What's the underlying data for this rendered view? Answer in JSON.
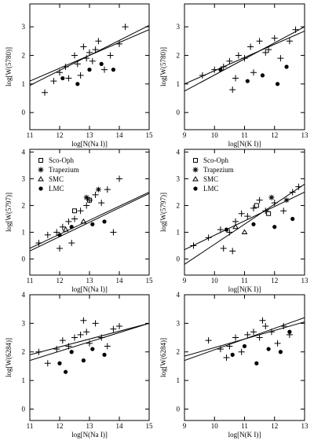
{
  "chart_data": [
    {
      "type": "scatter",
      "xlabel": "log[N(Na I)]",
      "ylabel": "log[W(5780)]",
      "xlim": [
        11,
        15
      ],
      "ylim": [
        -0.6,
        3.8
      ],
      "xticks": [
        11,
        12,
        13,
        14,
        15
      ],
      "yticks": [
        0,
        1,
        2,
        3
      ],
      "series": [
        {
          "marker": "plus",
          "color": "#000000",
          "x": [
            11.5,
            11.8,
            12.0,
            12.2,
            12.3,
            12.5,
            12.6,
            12.8,
            12.9,
            13.0,
            13.1,
            13.3,
            13.5,
            13.7,
            14.0,
            14.2,
            12.7,
            13.2
          ],
          "values": [
            0.7,
            1.1,
            1.4,
            1.6,
            1.2,
            2.0,
            1.7,
            2.3,
            1.9,
            2.1,
            1.8,
            2.5,
            1.5,
            2.0,
            2.4,
            3.0,
            1.3,
            2.2
          ]
        },
        {
          "marker": "dot",
          "color": "#000000",
          "x": [
            12.1,
            12.6,
            13.0,
            13.4,
            13.8
          ],
          "values": [
            1.2,
            1.0,
            1.5,
            1.7,
            1.5
          ]
        }
      ],
      "fits": [
        {
          "x": [
            11,
            15
          ],
          "values": [
            0.95,
            3.05
          ]
        },
        {
          "x": [
            11,
            15
          ],
          "values": [
            1.1,
            2.9
          ]
        }
      ]
    },
    {
      "type": "scatter",
      "xlabel": "log[N(K I)]",
      "ylabel": "log[W(5780)]",
      "xlim": [
        9,
        13
      ],
      "ylim": [
        -0.6,
        3.8
      ],
      "xticks": [
        9,
        10,
        11,
        12,
        13
      ],
      "yticks": [
        0,
        1,
        2,
        3
      ],
      "series": [
        {
          "marker": "plus",
          "color": "#000000",
          "x": [
            9.6,
            10.0,
            10.3,
            10.5,
            10.7,
            10.8,
            11.0,
            11.2,
            11.3,
            11.5,
            11.7,
            12.0,
            12.2,
            12.5,
            12.7,
            10.6,
            11.8
          ],
          "values": [
            1.3,
            1.5,
            1.6,
            1.8,
            1.2,
            2.0,
            1.9,
            2.3,
            1.4,
            2.5,
            2.1,
            2.6,
            1.9,
            2.5,
            2.9,
            0.8,
            2.2
          ]
        },
        {
          "marker": "dot",
          "color": "#000000",
          "x": [
            10.2,
            11.1,
            11.6,
            12.1,
            12.4
          ],
          "values": [
            1.5,
            1.1,
            1.3,
            1.0,
            1.6
          ]
        }
      ],
      "fits": [
        {
          "x": [
            9,
            13
          ],
          "values": [
            0.75,
            3.0
          ]
        },
        {
          "x": [
            9,
            13
          ],
          "values": [
            1.0,
            2.85
          ]
        }
      ]
    },
    {
      "type": "scatter",
      "xlabel": "log[N(Na I)]",
      "ylabel": "log[W(5797)]",
      "xlim": [
        11,
        15
      ],
      "ylim": [
        -0.6,
        4.1
      ],
      "xticks": [
        11,
        12,
        13,
        14,
        15
      ],
      "yticks": [
        0,
        1,
        2,
        3,
        4
      ],
      "series": [
        {
          "name": "Sco-Oph",
          "marker": "square",
          "color": "#000000",
          "x": [
            12.5,
            13.0
          ],
          "values": [
            1.8,
            2.2
          ]
        },
        {
          "name": "Trapezium",
          "marker": "star",
          "color": "#000000",
          "x": [
            13.3,
            12.9
          ],
          "values": [
            2.6,
            2.3
          ]
        },
        {
          "name": "SMC",
          "marker": "triangle",
          "color": "#000000",
          "x": [
            12.2,
            12.8
          ],
          "values": [
            1.1,
            1.4
          ]
        },
        {
          "name": "LMC",
          "marker": "dot",
          "color": "#000000",
          "x": [
            12.0,
            12.4,
            13.1,
            13.5
          ],
          "values": [
            0.9,
            1.2,
            1.3,
            1.4
          ]
        },
        {
          "marker": "plus",
          "color": "#000000",
          "x": [
            11.3,
            11.6,
            11.9,
            12.1,
            12.3,
            12.5,
            12.7,
            12.9,
            13.0,
            13.2,
            13.4,
            13.6,
            13.8,
            14.0,
            12.4,
            12.0
          ],
          "values": [
            0.6,
            0.9,
            1.0,
            1.2,
            1.4,
            1.5,
            1.8,
            2.0,
            2.2,
            2.4,
            2.1,
            2.6,
            1.0,
            3.0,
            0.6,
            0.4
          ]
        }
      ],
      "fits": [
        {
          "x": [
            11,
            15
          ],
          "values": [
            0.4,
            2.5
          ]
        },
        {
          "x": [
            11,
            15
          ],
          "values": [
            0.3,
            2.45
          ]
        }
      ]
    },
    {
      "type": "scatter",
      "xlabel": "log[N(K I)]",
      "ylabel": "log[W(5797)]",
      "xlim": [
        9,
        13
      ],
      "ylim": [
        -0.6,
        4.1
      ],
      "xticks": [
        9,
        10,
        11,
        12,
        13
      ],
      "yticks": [
        0,
        1,
        2,
        3,
        4
      ],
      "series": [
        {
          "name": "Sco-Oph",
          "marker": "square",
          "color": "#000000",
          "x": [
            11.4,
            11.8
          ],
          "values": [
            2.0,
            1.7
          ]
        },
        {
          "name": "Trapezium",
          "marker": "star",
          "color": "#000000",
          "x": [
            11.9,
            12.4
          ],
          "values": [
            2.3,
            2.2
          ]
        },
        {
          "name": "SMC",
          "marker": "triangle",
          "color": "#000000",
          "x": [
            10.7,
            11.0
          ],
          "values": [
            1.2,
            1.0
          ]
        },
        {
          "name": "LMC",
          "marker": "dot",
          "color": "#000000",
          "x": [
            10.4,
            11.3,
            12.0,
            12.6
          ],
          "values": [
            1.1,
            1.3,
            1.2,
            1.5
          ]
        },
        {
          "marker": "plus",
          "color": "#000000",
          "x": [
            9.3,
            9.8,
            10.2,
            10.5,
            10.7,
            10.9,
            11.1,
            11.3,
            11.5,
            11.7,
            12.0,
            12.3,
            12.6,
            12.8,
            10.3,
            10.6
          ],
          "values": [
            0.5,
            0.8,
            1.1,
            1.0,
            1.4,
            1.7,
            1.6,
            1.9,
            2.2,
            1.8,
            2.1,
            1.8,
            2.5,
            2.7,
            0.4,
            0.3
          ]
        }
      ],
      "fits": [
        {
          "x": [
            9,
            13
          ],
          "values": [
            -0.2,
            2.8
          ]
        },
        {
          "x": [
            9,
            13
          ],
          "values": [
            0.35,
            2.5
          ]
        }
      ]
    },
    {
      "type": "scatter",
      "xlabel": "log[N(Na I)]",
      "ylabel": "log[W(6284)]",
      "xlim": [
        11,
        15
      ],
      "ylim": [
        -0.4,
        4
      ],
      "xticks": [
        11,
        12,
        13,
        14,
        15
      ],
      "yticks": [
        0,
        1,
        2,
        3,
        4
      ],
      "series": [
        {
          "marker": "plus",
          "color": "#000000",
          "x": [
            11.3,
            11.6,
            11.9,
            12.1,
            12.3,
            12.5,
            12.7,
            12.9,
            13.0,
            13.2,
            13.4,
            13.6,
            13.8,
            14.0,
            12.8
          ],
          "values": [
            2.0,
            1.6,
            2.1,
            2.4,
            2.2,
            2.5,
            2.6,
            2.7,
            2.3,
            3.0,
            2.5,
            2.2,
            2.8,
            2.9,
            3.1
          ]
        },
        {
          "marker": "dot",
          "color": "#000000",
          "x": [
            12.0,
            12.4,
            12.8,
            13.1,
            13.5,
            12.2
          ],
          "values": [
            1.6,
            2.0,
            1.7,
            2.1,
            1.9,
            1.3
          ]
        }
      ],
      "fits": [
        {
          "x": [
            11,
            15
          ],
          "values": [
            1.7,
            3.0
          ]
        },
        {
          "x": [
            11,
            15
          ],
          "values": [
            1.9,
            3.0
          ]
        }
      ]
    },
    {
      "type": "scatter",
      "xlabel": "log[N(K I)]",
      "ylabel": "log[W(6284)]",
      "xlim": [
        9,
        13
      ],
      "ylim": [
        -0.4,
        4
      ],
      "xticks": [
        9,
        10,
        11,
        12,
        13
      ],
      "yticks": [
        0,
        1,
        2,
        3,
        4
      ],
      "series": [
        {
          "marker": "plus",
          "color": "#000000",
          "x": [
            9.8,
            10.2,
            10.5,
            10.7,
            10.9,
            11.1,
            11.3,
            11.5,
            11.7,
            11.9,
            12.1,
            12.3,
            12.5,
            10.4,
            11.6
          ],
          "values": [
            2.4,
            2.1,
            2.2,
            2.5,
            2.0,
            2.6,
            2.7,
            2.5,
            2.9,
            2.7,
            2.3,
            2.9,
            2.6,
            1.8,
            3.1
          ]
        },
        {
          "marker": "dot",
          "color": "#000000",
          "x": [
            10.6,
            11.0,
            11.4,
            11.8,
            12.2,
            12.5
          ],
          "values": [
            1.9,
            2.2,
            1.6,
            2.1,
            2.0,
            2.7
          ]
        }
      ],
      "fits": [
        {
          "x": [
            9,
            13
          ],
          "values": [
            1.7,
            3.2
          ]
        },
        {
          "x": [
            9,
            13
          ],
          "values": [
            1.85,
            3.05
          ]
        }
      ]
    }
  ]
}
